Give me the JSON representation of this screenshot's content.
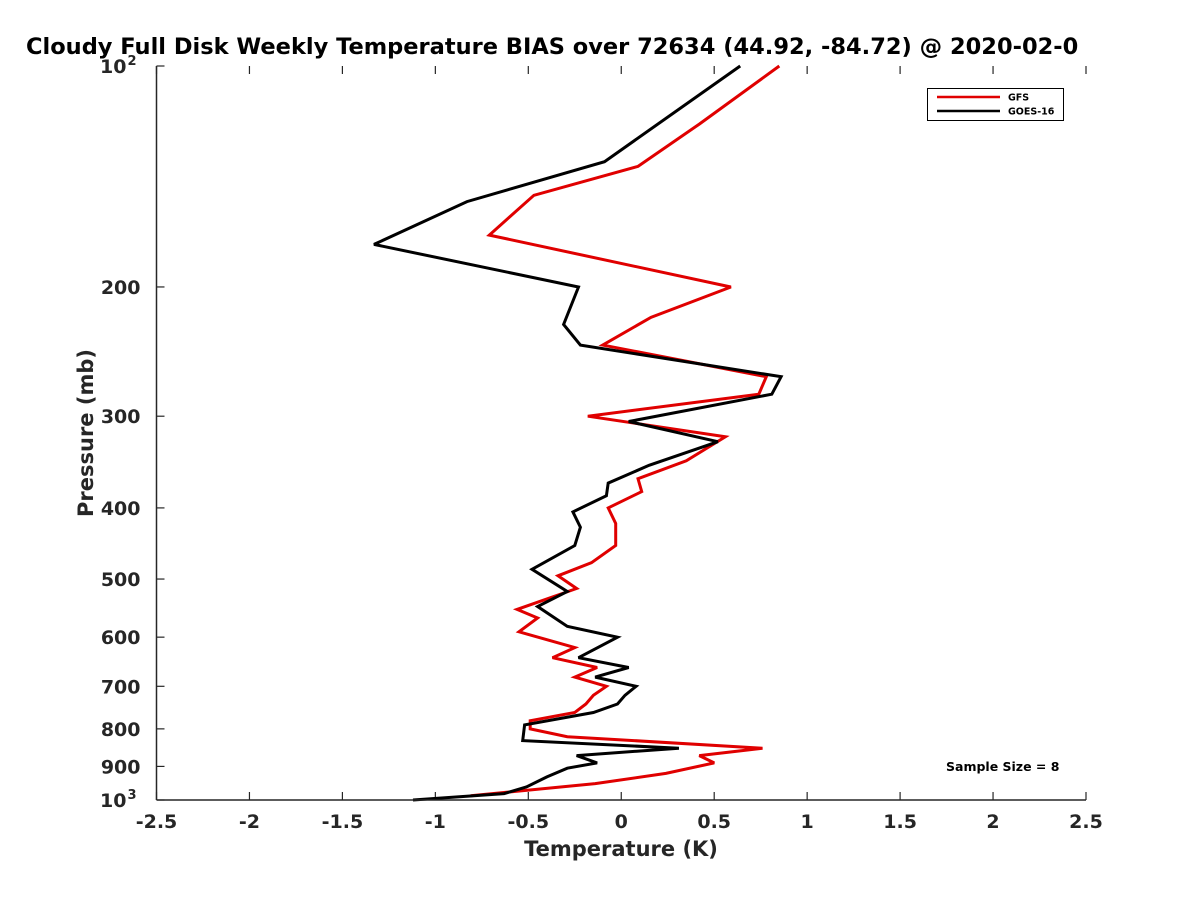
{
  "chart_data": {
    "type": "line",
    "title": "Cloudy Full Disk Weekly Temperature BIAS over 72634 (44.92, -84.72) @ 2020-02-0",
    "xlabel": "Temperature (K)",
    "ylabel": "Pressure (mb)",
    "xlim": [
      -2.5,
      2.5
    ],
    "ylim": [
      100,
      1000
    ],
    "y_scale": "log",
    "y_reversed": true,
    "grid": false,
    "legend_position": "top-right",
    "x_ticks": [
      "-2.5",
      "-2",
      "-1.5",
      "-1",
      "-0.5",
      "0",
      "0.5",
      "1",
      "1.5",
      "2",
      "2.5"
    ],
    "y_ticks": [
      {
        "value": 100,
        "base": "10",
        "exp": "2"
      },
      {
        "value": 200,
        "label": "200"
      },
      {
        "value": 300,
        "label": "300"
      },
      {
        "value": 400,
        "label": "400"
      },
      {
        "value": 500,
        "label": "500"
      },
      {
        "value": 600,
        "label": "600"
      },
      {
        "value": 700,
        "label": "700"
      },
      {
        "value": 800,
        "label": "800"
      },
      {
        "value": 900,
        "label": "900"
      },
      {
        "value": 1000,
        "base": "10",
        "exp": "3"
      }
    ],
    "annotation": "Sample Size = 8",
    "series": [
      {
        "name": "GFS",
        "color": "#e00000",
        "points": [
          [
            0.85,
            100
          ],
          [
            0.42,
            120
          ],
          [
            0.09,
            137
          ],
          [
            -0.47,
            150
          ],
          [
            -0.71,
            170
          ],
          [
            0.59,
            200
          ],
          [
            0.16,
            220
          ],
          [
            -0.1,
            240
          ],
          [
            0.78,
            265
          ],
          [
            0.74,
            280
          ],
          [
            -0.18,
            300
          ],
          [
            0.56,
            320
          ],
          [
            0.35,
            345
          ],
          [
            0.09,
            365
          ],
          [
            0.11,
            380
          ],
          [
            -0.07,
            400
          ],
          [
            -0.03,
            420
          ],
          [
            -0.03,
            450
          ],
          [
            -0.16,
            475
          ],
          [
            -0.34,
            495
          ],
          [
            -0.24,
            515
          ],
          [
            -0.56,
            550
          ],
          [
            -0.45,
            565
          ],
          [
            -0.55,
            590
          ],
          [
            -0.25,
            620
          ],
          [
            -0.37,
            640
          ],
          [
            -0.13,
            660
          ],
          [
            -0.25,
            680
          ],
          [
            -0.08,
            700
          ],
          [
            -0.15,
            720
          ],
          [
            -0.19,
            740
          ],
          [
            -0.25,
            760
          ],
          [
            -0.49,
            780
          ],
          [
            -0.49,
            800
          ],
          [
            -0.29,
            820
          ],
          [
            0.76,
            850
          ],
          [
            0.42,
            870
          ],
          [
            0.5,
            890
          ],
          [
            0.24,
            920
          ],
          [
            -0.14,
            950
          ],
          [
            -0.81,
            987
          ]
        ]
      },
      {
        "name": "GOES-16",
        "color": "#000000",
        "points": [
          [
            0.64,
            100
          ],
          [
            -0.09,
            135
          ],
          [
            -0.83,
            153
          ],
          [
            -1.33,
            175
          ],
          [
            -0.23,
            200
          ],
          [
            -0.31,
            225
          ],
          [
            -0.22,
            240
          ],
          [
            0.86,
            265
          ],
          [
            0.81,
            280
          ],
          [
            0.04,
            305
          ],
          [
            0.52,
            325
          ],
          [
            0.15,
            350
          ],
          [
            -0.07,
            370
          ],
          [
            -0.08,
            385
          ],
          [
            -0.26,
            405
          ],
          [
            -0.22,
            425
          ],
          [
            -0.25,
            450
          ],
          [
            -0.48,
            485
          ],
          [
            -0.29,
            520
          ],
          [
            -0.45,
            545
          ],
          [
            -0.29,
            580
          ],
          [
            -0.02,
            600
          ],
          [
            -0.23,
            640
          ],
          [
            0.04,
            660
          ],
          [
            -0.14,
            680
          ],
          [
            0.08,
            700
          ],
          [
            0.02,
            720
          ],
          [
            -0.02,
            740
          ],
          [
            -0.15,
            760
          ],
          [
            -0.52,
            790
          ],
          [
            -0.53,
            830
          ],
          [
            0.31,
            850
          ],
          [
            -0.24,
            870
          ],
          [
            -0.13,
            890
          ],
          [
            -0.29,
            905
          ],
          [
            -0.4,
            930
          ],
          [
            -0.51,
            960
          ],
          [
            -0.63,
            980
          ],
          [
            -1.12,
            1000
          ]
        ]
      }
    ]
  }
}
